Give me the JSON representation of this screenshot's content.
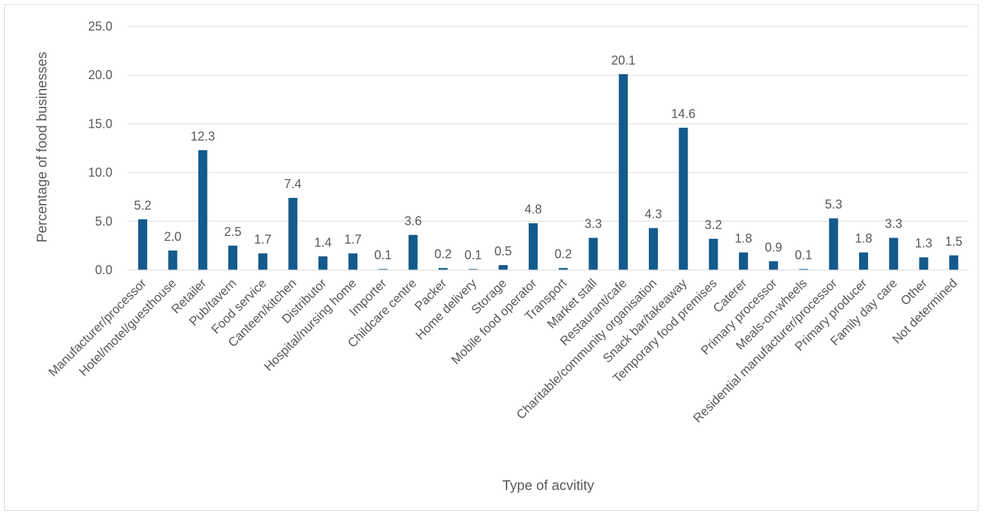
{
  "chart_data": {
    "type": "bar",
    "title": "",
    "xlabel": "Type of acvitity",
    "ylabel": "Percentage of food businesses",
    "ylim": [
      0,
      25
    ],
    "yticks": [
      "0.0",
      "5.0",
      "10.0",
      "15.0",
      "20.0",
      "25.0"
    ],
    "grid": true,
    "bar_color": "#145a8c",
    "categories": [
      "Manufacturer/processor",
      "Hotel/motel/guesthouse",
      "Retailer",
      "Pub/tavern",
      "Food service",
      "Canteen/kitchen",
      "Distributor",
      "Hospital/nursing home",
      "Importer",
      "Childcare centre",
      "Packer",
      "Home delivery",
      "Storage",
      "Mobile food operator",
      "Transport",
      "Market stall",
      "Restaurant/cafe",
      "Charitable/community organisation",
      "Snack bar/takeaway",
      "Temporary food premises",
      "Caterer",
      "Primary processor",
      "Meals-on-wheels",
      "Residential manufacturer/processor",
      "Primary producer",
      "Family day care",
      "Other",
      "Not determined"
    ],
    "values": [
      5.2,
      2.0,
      12.3,
      2.5,
      1.7,
      7.4,
      1.4,
      1.7,
      0.1,
      3.6,
      0.2,
      0.1,
      0.5,
      4.8,
      0.2,
      3.3,
      20.1,
      4.3,
      14.6,
      3.2,
      1.8,
      0.9,
      0.1,
      5.3,
      1.8,
      3.3,
      1.3,
      1.5
    ],
    "data_labels": [
      "5.2",
      "2.0",
      "12.3",
      "2.5",
      "1.7",
      "7.4",
      "1.4",
      "1.7",
      "0.1",
      "3.6",
      "0.2",
      "0.1",
      "0.5",
      "4.8",
      "0.2",
      "3.3",
      "20.1",
      "4.3",
      "14.6",
      "3.2",
      "1.8",
      "0.9",
      "0.1",
      "5.3",
      "1.8",
      "3.3",
      "1.3",
      "1.5"
    ]
  }
}
